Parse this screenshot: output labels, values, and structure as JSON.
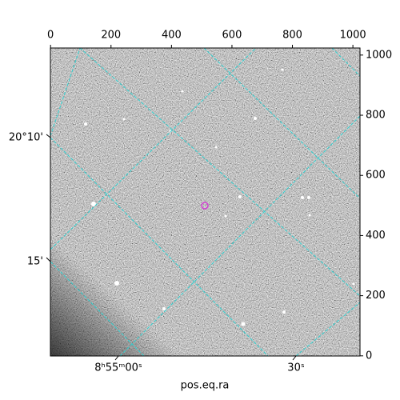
{
  "chart_data": {
    "type": "image",
    "xlabel": "pos.eq.ra",
    "xlim": [
      -0.5,
      1023.5
    ],
    "ylim": [
      -0.5,
      1023.5
    ],
    "xticks": [
      0,
      200,
      400,
      600,
      800,
      1000
    ],
    "yticks": [
      0,
      200,
      400,
      600,
      800,
      1000
    ],
    "wcs_labels": {
      "left": [
        "20°10'",
        "15'"
      ],
      "bottom": [
        "8ʰ55ᵐ00ˢ",
        "30ˢ"
      ]
    }
  }
}
